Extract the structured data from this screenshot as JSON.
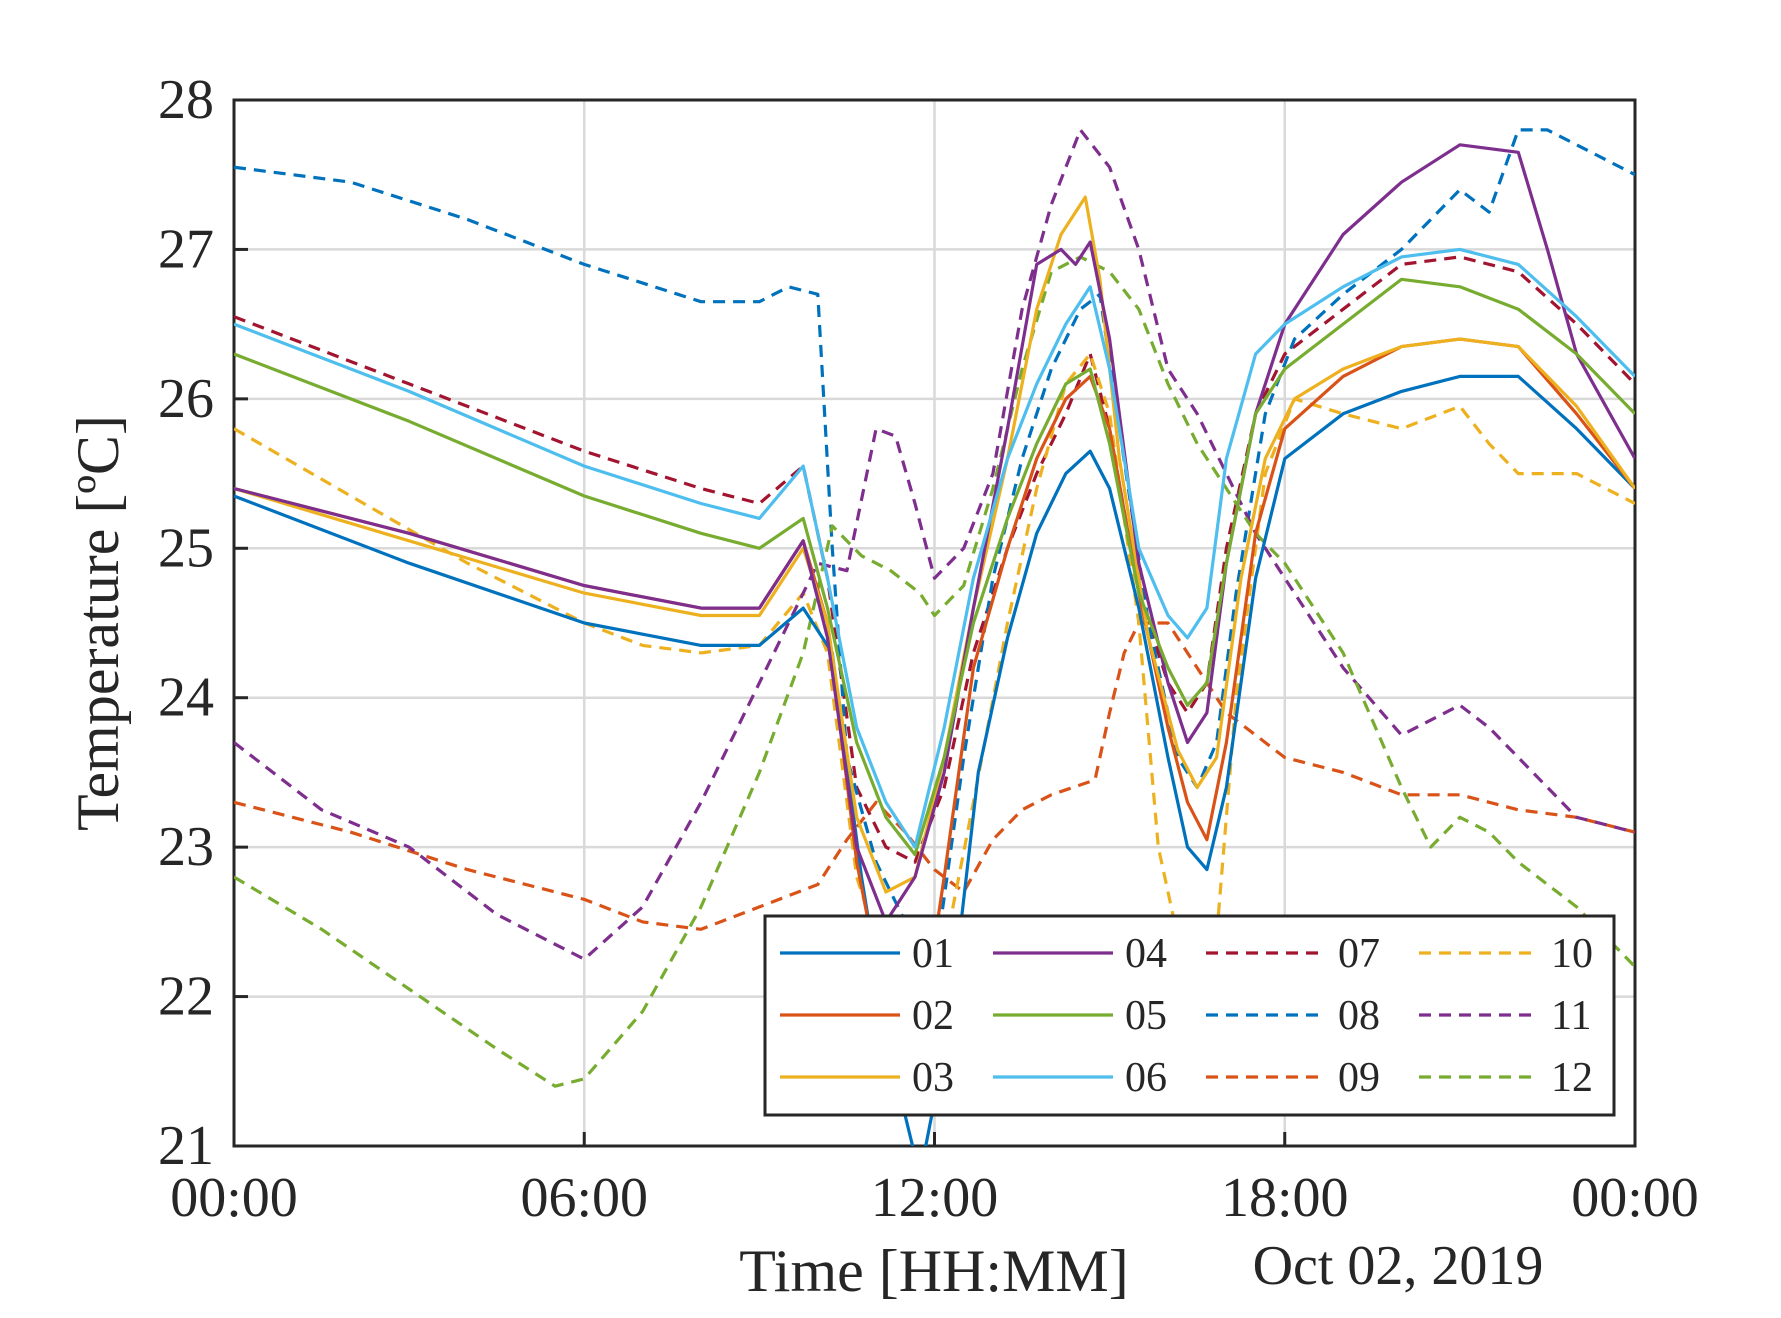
{
  "chart_data": {
    "type": "line",
    "xlabel": "Time [HH:MM]",
    "ylabel": "Temperature [ºC]",
    "date_label": "Oct 02, 2019",
    "xlim": [
      "2019-10-02T00:00",
      "2019-10-03T00:00"
    ],
    "ylim": [
      21,
      28
    ],
    "x_tick_labels": [
      "00:00",
      "06:00",
      "12:00",
      "18:00",
      "00:00"
    ],
    "y_tick_labels": [
      "21",
      "22",
      "23",
      "24",
      "25",
      "26",
      "27",
      "28"
    ],
    "grid": true,
    "legend_position": "bottom-right",
    "series": [
      {
        "name": "01",
        "color": "#0072BD",
        "style": "solid",
        "x": [
          "00:00",
          "03:00",
          "06:00",
          "08:00",
          "09:00",
          "09:45",
          "10:15",
          "10:45",
          "11:15",
          "11:45",
          "12:15",
          "12:45",
          "13:15",
          "13:45",
          "14:15",
          "14:40",
          "15:00",
          "15:30",
          "16:00",
          "16:20",
          "16:40",
          "17:00",
          "17:30",
          "18:00",
          "19:00",
          "20:00",
          "21:00",
          "22:00",
          "23:00",
          "24:00"
        ],
        "y": [
          25.35,
          24.9,
          24.5,
          24.35,
          24.35,
          24.6,
          24.3,
          22.8,
          21.6,
          20.8,
          21.8,
          23.5,
          24.4,
          25.1,
          25.5,
          25.65,
          25.4,
          24.6,
          23.6,
          23.0,
          22.85,
          23.4,
          24.8,
          25.6,
          25.9,
          26.05,
          26.15,
          26.15,
          25.8,
          25.4
        ]
      },
      {
        "name": "02",
        "color": "#D95319",
        "style": "solid",
        "x": [
          "00:00",
          "03:00",
          "06:00",
          "08:00",
          "09:00",
          "09:45",
          "10:10",
          "10:40",
          "11:10",
          "11:40",
          "12:10",
          "12:40",
          "13:15",
          "13:45",
          "14:15",
          "14:40",
          "15:00",
          "15:30",
          "16:00",
          "16:20",
          "16:40",
          "17:00",
          "17:30",
          "18:00",
          "19:00",
          "20:00",
          "21:00",
          "22:00",
          "23:00",
          "24:00"
        ],
        "y": [
          25.4,
          25.1,
          24.75,
          24.6,
          24.6,
          25.05,
          24.5,
          22.9,
          21.9,
          21.5,
          22.8,
          24.2,
          25.0,
          25.6,
          26.0,
          26.15,
          25.8,
          24.7,
          23.8,
          23.3,
          23.05,
          23.7,
          25.1,
          25.8,
          26.15,
          26.35,
          26.4,
          26.35,
          25.9,
          25.4
        ]
      },
      {
        "name": "03",
        "color": "#EDB120",
        "style": "solid",
        "x": [
          "00:00",
          "03:00",
          "06:00",
          "08:00",
          "09:00",
          "09:45",
          "10:10",
          "10:40",
          "11:10",
          "11:40",
          "12:10",
          "12:40",
          "13:15",
          "13:45",
          "14:10",
          "14:35",
          "14:50",
          "15:10",
          "15:40",
          "16:10",
          "16:30",
          "16:50",
          "17:15",
          "17:40",
          "18:10",
          "19:00",
          "20:00",
          "21:00",
          "22:00",
          "23:00",
          "24:00"
        ],
        "y": [
          25.4,
          25.05,
          24.7,
          24.55,
          24.55,
          25.0,
          24.5,
          23.2,
          22.7,
          22.8,
          23.6,
          24.6,
          25.6,
          26.6,
          27.1,
          27.35,
          26.8,
          25.6,
          24.4,
          23.65,
          23.4,
          23.6,
          24.8,
          25.6,
          26.0,
          26.2,
          26.35,
          26.4,
          26.35,
          25.95,
          25.4
        ]
      },
      {
        "name": "04",
        "color": "#7E2F8E",
        "style": "solid",
        "x": [
          "00:00",
          "03:00",
          "06:00",
          "08:00",
          "09:00",
          "09:45",
          "10:10",
          "10:40",
          "11:10",
          "11:40",
          "12:10",
          "12:40",
          "13:15",
          "13:45",
          "14:10",
          "14:25",
          "14:40",
          "15:00",
          "15:30",
          "16:00",
          "16:20",
          "16:40",
          "17:00",
          "17:30",
          "18:00",
          "19:00",
          "20:00",
          "21:00",
          "22:00",
          "22:30",
          "23:00",
          "24:00"
        ],
        "y": [
          25.4,
          25.1,
          24.75,
          24.6,
          24.6,
          25.05,
          24.4,
          23.0,
          22.5,
          22.8,
          23.5,
          24.6,
          25.8,
          26.9,
          27.0,
          26.9,
          27.05,
          26.4,
          24.9,
          24.1,
          23.7,
          23.9,
          24.9,
          25.9,
          26.5,
          27.1,
          27.45,
          27.7,
          27.65,
          27.0,
          26.3,
          25.6
        ]
      },
      {
        "name": "05",
        "color": "#77AC30",
        "style": "solid",
        "x": [
          "00:00",
          "03:00",
          "06:00",
          "08:00",
          "09:00",
          "09:45",
          "10:10",
          "10:40",
          "11:10",
          "11:40",
          "12:10",
          "12:40",
          "13:15",
          "13:45",
          "14:15",
          "14:40",
          "15:00",
          "15:30",
          "16:00",
          "16:20",
          "16:40",
          "17:00",
          "17:30",
          "18:00",
          "19:00",
          "20:00",
          "21:00",
          "22:00",
          "23:00",
          "24:00"
        ],
        "y": [
          26.3,
          25.85,
          25.35,
          25.1,
          25.0,
          25.2,
          24.6,
          23.7,
          23.2,
          22.95,
          23.6,
          24.5,
          25.2,
          25.7,
          26.1,
          26.2,
          25.7,
          24.7,
          24.2,
          23.95,
          24.1,
          24.9,
          25.9,
          26.2,
          26.5,
          26.8,
          26.75,
          26.6,
          26.3,
          25.9
        ]
      },
      {
        "name": "06",
        "color": "#4DBEEE",
        "style": "solid",
        "x": [
          "00:00",
          "03:00",
          "06:00",
          "08:00",
          "09:00",
          "09:45",
          "10:10",
          "10:40",
          "11:10",
          "11:40",
          "12:10",
          "12:40",
          "13:15",
          "13:45",
          "14:15",
          "14:40",
          "15:00",
          "15:30",
          "16:00",
          "16:20",
          "16:40",
          "17:00",
          "17:30",
          "18:00",
          "19:00",
          "20:00",
          "21:00",
          "22:00",
          "23:00",
          "24:00"
        ],
        "y": [
          26.5,
          26.05,
          25.55,
          25.3,
          25.2,
          25.55,
          24.8,
          23.8,
          23.3,
          23.0,
          23.8,
          24.8,
          25.6,
          26.1,
          26.5,
          26.75,
          26.2,
          25.0,
          24.55,
          24.4,
          24.6,
          25.6,
          26.3,
          26.5,
          26.75,
          26.95,
          27.0,
          26.9,
          26.55,
          26.15
        ]
      },
      {
        "name": "07",
        "color": "#A2142F",
        "style": "dashed",
        "x": [
          "00:00",
          "03:00",
          "06:00",
          "08:00",
          "09:00",
          "09:45",
          "10:10",
          "10:40",
          "11:10",
          "11:40",
          "12:10",
          "12:40",
          "13:15",
          "13:45",
          "14:15",
          "14:40",
          "15:00",
          "15:30",
          "16:00",
          "16:20",
          "16:40",
          "17:00",
          "17:30",
          "18:00",
          "19:00",
          "20:00",
          "21:00",
          "22:00",
          "23:00",
          "24:00"
        ],
        "y": [
          26.55,
          26.1,
          25.65,
          25.4,
          25.3,
          25.55,
          24.8,
          23.4,
          23.0,
          22.9,
          23.4,
          24.3,
          25.0,
          25.5,
          25.9,
          26.3,
          25.8,
          24.7,
          24.1,
          23.9,
          24.1,
          25.0,
          25.9,
          26.3,
          26.6,
          26.9,
          26.95,
          26.85,
          26.5,
          26.1
        ]
      },
      {
        "name": "08",
        "color": "#0072BD",
        "style": "dashed",
        "x": [
          "00:00",
          "02:00",
          "04:00",
          "06:00",
          "08:00",
          "09:00",
          "09:30",
          "10:00",
          "10:15",
          "10:30",
          "11:00",
          "11:30",
          "12:00",
          "12:30",
          "13:00",
          "13:30",
          "14:00",
          "14:30",
          "14:50",
          "15:10",
          "15:40",
          "16:10",
          "16:30",
          "16:50",
          "17:10",
          "17:40",
          "18:10",
          "19:00",
          "20:00",
          "21:00",
          "21:30",
          "22:00",
          "22:30",
          "23:00",
          "24:00"
        ],
        "y": [
          27.55,
          27.45,
          27.2,
          26.9,
          26.65,
          26.65,
          26.75,
          26.7,
          25.0,
          23.6,
          22.9,
          22.5,
          22.2,
          23.6,
          24.8,
          25.6,
          26.2,
          26.6,
          26.7,
          25.8,
          24.5,
          23.6,
          23.4,
          23.7,
          24.7,
          25.9,
          26.4,
          26.7,
          27.0,
          27.4,
          27.25,
          27.8,
          27.8,
          27.7,
          27.5
        ]
      },
      {
        "name": "09",
        "color": "#D95319",
        "style": "dashed",
        "x": [
          "00:00",
          "02:00",
          "04:00",
          "06:00",
          "07:00",
          "08:00",
          "09:00",
          "10:00",
          "10:30",
          "11:00",
          "11:30",
          "12:00",
          "12:30",
          "13:00",
          "13:30",
          "14:00",
          "14:45",
          "15:00",
          "15:15",
          "15:30",
          "16:00",
          "16:20",
          "16:40",
          "17:00",
          "17:30",
          "18:00",
          "19:00",
          "20:00",
          "21:00",
          "22:00",
          "23:00",
          "24:00"
        ],
        "y": [
          23.3,
          23.1,
          22.85,
          22.65,
          22.5,
          22.45,
          22.6,
          22.75,
          23.05,
          23.3,
          23.1,
          22.85,
          22.7,
          23.05,
          23.25,
          23.35,
          23.45,
          23.9,
          24.3,
          24.5,
          24.5,
          24.3,
          24.1,
          23.9,
          23.75,
          23.6,
          23.5,
          23.35,
          23.35,
          23.25,
          23.2,
          23.1
        ]
      },
      {
        "name": "10",
        "color": "#EDB120",
        "style": "dashed",
        "x": [
          "00:00",
          "02:00",
          "04:00",
          "06:00",
          "07:00",
          "08:00",
          "09:00",
          "09:45",
          "10:10",
          "10:40",
          "11:10",
          "11:40",
          "12:10",
          "12:40",
          "13:15",
          "13:45",
          "14:15",
          "14:40",
          "15:00",
          "15:30",
          "15:50",
          "16:10",
          "16:30",
          "16:50",
          "17:10",
          "17:40",
          "18:10",
          "19:00",
          "20:00",
          "21:00",
          "21:30",
          "22:00",
          "23:00",
          "24:00"
        ],
        "y": [
          25.8,
          25.35,
          24.9,
          24.5,
          24.35,
          24.3,
          24.35,
          24.7,
          24.3,
          22.8,
          22.2,
          22.2,
          22.3,
          23.3,
          24.5,
          25.4,
          26.1,
          26.3,
          25.9,
          24.5,
          23.0,
          22.4,
          22.2,
          22.4,
          24.0,
          25.5,
          26.0,
          25.9,
          25.8,
          25.95,
          25.7,
          25.5,
          25.5,
          25.3
        ]
      },
      {
        "name": "11",
        "color": "#7E2F8E",
        "style": "dashed",
        "x": [
          "00:00",
          "01:30",
          "03:00",
          "04:30",
          "06:00",
          "07:00",
          "08:00",
          "09:00",
          "10:00",
          "10:30",
          "11:00",
          "11:20",
          "11:40",
          "12:00",
          "12:30",
          "13:00",
          "13:30",
          "14:00",
          "14:30",
          "15:00",
          "15:30",
          "16:00",
          "16:30",
          "17:00",
          "17:30",
          "18:00",
          "19:00",
          "20:00",
          "21:00",
          "21:30",
          "22:00",
          "23:00",
          "24:00"
        ],
        "y": [
          23.7,
          23.25,
          23.0,
          22.55,
          22.25,
          22.6,
          23.3,
          24.1,
          24.9,
          24.85,
          25.8,
          25.75,
          25.3,
          24.8,
          25.0,
          25.5,
          26.6,
          27.3,
          27.8,
          27.55,
          27.0,
          26.2,
          25.9,
          25.5,
          25.1,
          24.8,
          24.2,
          23.75,
          23.95,
          23.8,
          23.6,
          23.2,
          23.1
        ]
      },
      {
        "name": "12",
        "color": "#77AC30",
        "style": "dashed",
        "x": [
          "00:00",
          "01:30",
          "03:00",
          "04:30",
          "05:30",
          "06:00",
          "07:00",
          "08:00",
          "09:00",
          "09:45",
          "10:15",
          "10:45",
          "11:15",
          "11:45",
          "12:00",
          "12:30",
          "13:00",
          "13:30",
          "14:00",
          "14:30",
          "15:00",
          "15:30",
          "16:00",
          "16:30",
          "17:00",
          "17:30",
          "18:00",
          "19:00",
          "20:00",
          "20:30",
          "21:00",
          "21:30",
          "22:00",
          "23:00",
          "24:00"
        ],
        "y": [
          22.8,
          22.45,
          22.05,
          21.65,
          21.4,
          21.45,
          21.9,
          22.6,
          23.5,
          24.3,
          25.15,
          24.95,
          24.85,
          24.7,
          24.55,
          24.75,
          25.4,
          26.2,
          26.85,
          26.95,
          26.85,
          26.6,
          26.1,
          25.7,
          25.4,
          25.1,
          24.9,
          24.3,
          23.4,
          23.0,
          23.2,
          23.1,
          22.9,
          22.6,
          22.2
        ]
      }
    ]
  }
}
